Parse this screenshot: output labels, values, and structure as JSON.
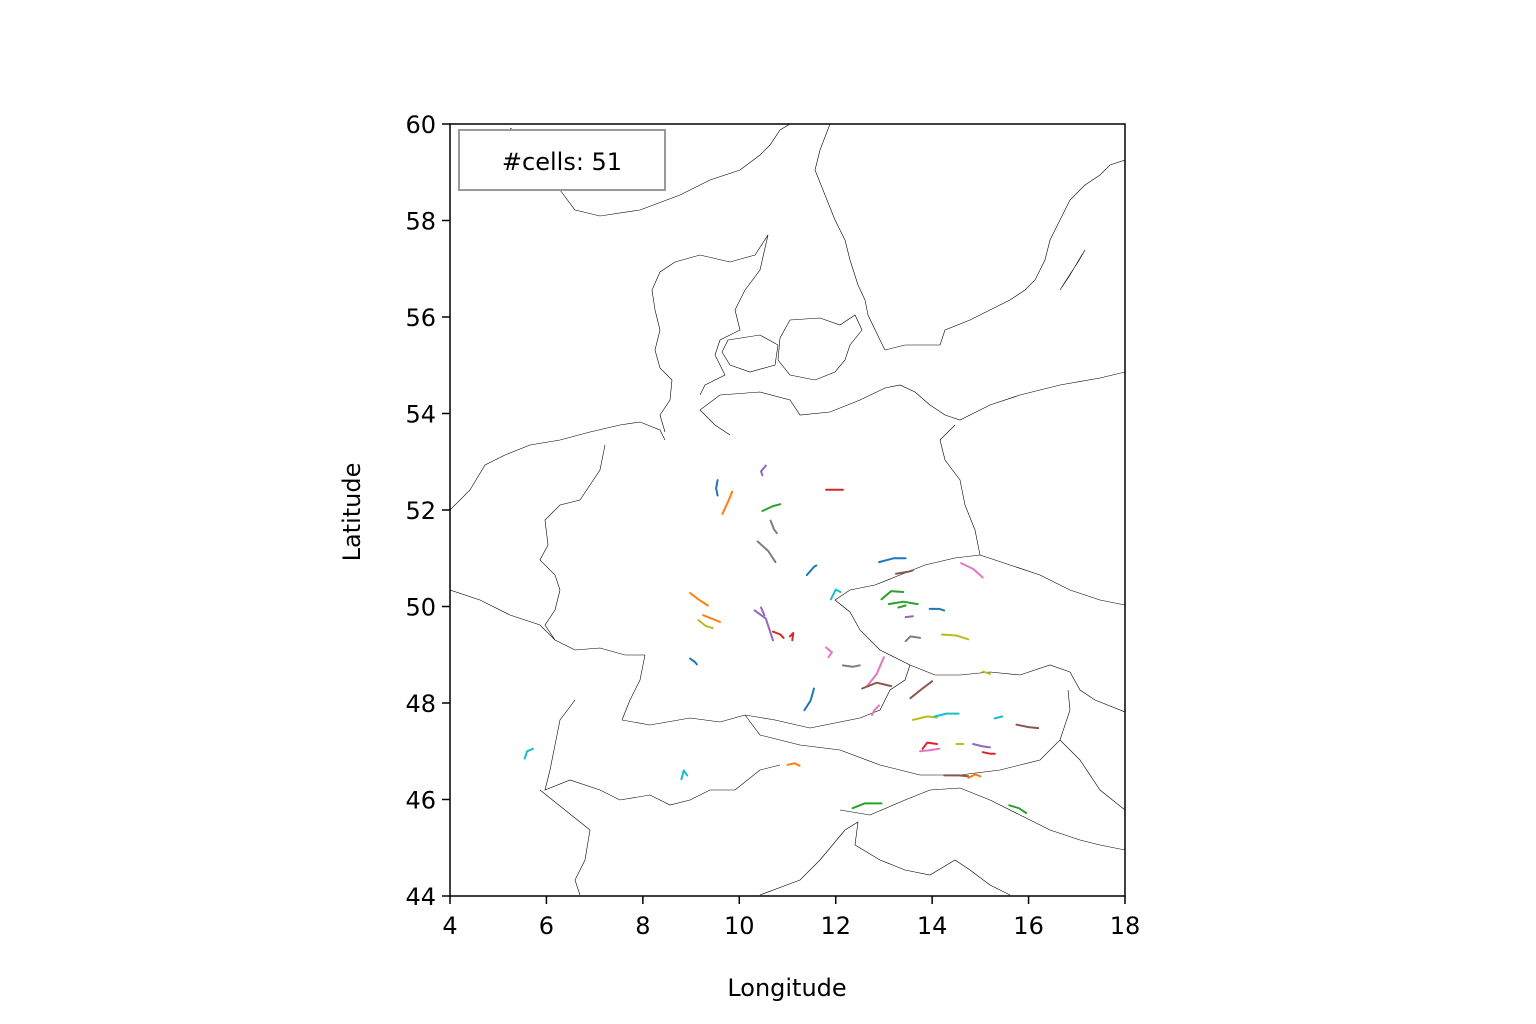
{
  "chart_data": {
    "type": "map-tracks",
    "xlabel": "Longitude",
    "ylabel": "Latitude",
    "xlim": [
      4,
      18
    ],
    "ylim": [
      44,
      60
    ],
    "xticks": [
      4,
      6,
      8,
      10,
      12,
      14,
      16,
      18
    ],
    "yticks": [
      44,
      46,
      48,
      50,
      52,
      54,
      56,
      58,
      60
    ],
    "xtick_labels": [
      "4",
      "6",
      "8",
      "10",
      "12",
      "14",
      "16",
      "18"
    ],
    "ytick_labels": [
      "44",
      "46",
      "48",
      "50",
      "52",
      "54",
      "56",
      "58",
      "60"
    ],
    "annotation": {
      "text": "#cells: 51",
      "placement": "top-left"
    },
    "basemap": "coastlines and country borders (Central Europe)",
    "grid": false,
    "tracks": [
      {
        "color": "#1f77b4",
        "points": [
          [
            9.55,
            52.62
          ],
          [
            9.52,
            52.45
          ],
          [
            9.55,
            52.3
          ]
        ]
      },
      {
        "color": "#ff7f0e",
        "points": [
          [
            9.85,
            52.38
          ],
          [
            9.78,
            52.2
          ],
          [
            9.65,
            51.92
          ]
        ]
      },
      {
        "color": "#9467bd",
        "points": [
          [
            10.55,
            52.92
          ],
          [
            10.45,
            52.8
          ],
          [
            10.48,
            52.72
          ]
        ]
      },
      {
        "color": "#d62728",
        "points": [
          [
            11.8,
            52.42
          ],
          [
            12.15,
            52.42
          ]
        ]
      },
      {
        "color": "#2ca02c",
        "points": [
          [
            10.48,
            51.98
          ],
          [
            10.7,
            52.08
          ],
          [
            10.85,
            52.12
          ]
        ]
      },
      {
        "color": "#7f7f7f",
        "points": [
          [
            10.65,
            51.78
          ],
          [
            10.72,
            51.6
          ],
          [
            10.78,
            51.52
          ]
        ]
      },
      {
        "color": "#7f7f7f",
        "points": [
          [
            10.38,
            51.35
          ],
          [
            10.6,
            51.15
          ],
          [
            10.75,
            50.92
          ]
        ]
      },
      {
        "color": "#1f77b4",
        "points": [
          [
            11.4,
            50.65
          ],
          [
            11.55,
            50.82
          ],
          [
            11.6,
            50.85
          ]
        ]
      },
      {
        "color": "#17becf",
        "points": [
          [
            11.9,
            50.15
          ],
          [
            12.0,
            50.35
          ],
          [
            12.1,
            50.3
          ]
        ]
      },
      {
        "color": "#1f77b4",
        "points": [
          [
            12.9,
            50.92
          ],
          [
            13.2,
            51.0
          ],
          [
            13.45,
            51.0
          ]
        ]
      },
      {
        "color": "#8c564b",
        "points": [
          [
            13.25,
            50.68
          ],
          [
            13.5,
            50.72
          ],
          [
            13.6,
            50.75
          ]
        ]
      },
      {
        "color": "#e377c2",
        "points": [
          [
            14.6,
            50.9
          ],
          [
            14.85,
            50.78
          ],
          [
            15.05,
            50.6
          ]
        ]
      },
      {
        "color": "#2ca02c",
        "points": [
          [
            12.95,
            50.15
          ],
          [
            13.15,
            50.32
          ],
          [
            13.4,
            50.3
          ]
        ]
      },
      {
        "color": "#2ca02c",
        "points": [
          [
            13.1,
            50.05
          ],
          [
            13.4,
            50.1
          ],
          [
            13.7,
            50.05
          ]
        ]
      },
      {
        "color": "#1f77b4",
        "points": [
          [
            13.95,
            49.95
          ],
          [
            14.15,
            49.95
          ],
          [
            14.25,
            49.92
          ]
        ]
      },
      {
        "color": "#9467bd",
        "points": [
          [
            13.45,
            49.78
          ],
          [
            13.6,
            49.8
          ]
        ]
      },
      {
        "color": "#7f7f7f",
        "points": [
          [
            13.45,
            49.28
          ],
          [
            13.55,
            49.38
          ],
          [
            13.75,
            49.35
          ]
        ]
      },
      {
        "color": "#bcbd22",
        "points": [
          [
            14.2,
            49.42
          ],
          [
            14.5,
            49.4
          ],
          [
            14.75,
            49.32
          ]
        ]
      },
      {
        "color": "#ff7f0e",
        "points": [
          [
            8.98,
            50.28
          ],
          [
            9.15,
            50.15
          ],
          [
            9.35,
            50.02
          ]
        ]
      },
      {
        "color": "#ff7f0e",
        "points": [
          [
            9.25,
            49.82
          ],
          [
            9.5,
            49.72
          ],
          [
            9.6,
            49.68
          ]
        ]
      },
      {
        "color": "#bcbd22",
        "points": [
          [
            9.15,
            49.72
          ],
          [
            9.3,
            49.6
          ],
          [
            9.45,
            49.55
          ]
        ]
      },
      {
        "color": "#9467bd",
        "points": [
          [
            10.32,
            49.92
          ],
          [
            10.55,
            49.75
          ],
          [
            10.7,
            49.3
          ]
        ]
      },
      {
        "color": "#d62728",
        "points": [
          [
            10.7,
            49.48
          ],
          [
            10.85,
            49.42
          ],
          [
            10.92,
            49.35
          ]
        ]
      },
      {
        "color": "#d62728",
        "points": [
          [
            11.05,
            49.38
          ],
          [
            11.12,
            49.45
          ],
          [
            11.1,
            49.3
          ]
        ]
      },
      {
        "color": "#1f77b4",
        "points": [
          [
            8.98,
            48.92
          ],
          [
            9.08,
            48.85
          ],
          [
            9.12,
            48.8
          ]
        ]
      },
      {
        "color": "#e377c2",
        "points": [
          [
            11.8,
            49.15
          ],
          [
            11.92,
            49.05
          ],
          [
            11.85,
            48.95
          ]
        ]
      },
      {
        "color": "#7f7f7f",
        "points": [
          [
            12.15,
            48.78
          ],
          [
            12.35,
            48.75
          ],
          [
            12.5,
            48.78
          ]
        ]
      },
      {
        "color": "#e377c2",
        "points": [
          [
            12.65,
            48.35
          ],
          [
            12.85,
            48.6
          ],
          [
            13.0,
            48.95
          ]
        ]
      },
      {
        "color": "#8c564b",
        "points": [
          [
            12.55,
            48.3
          ],
          [
            12.85,
            48.42
          ],
          [
            13.15,
            48.35
          ]
        ]
      },
      {
        "color": "#8c564b",
        "points": [
          [
            13.55,
            48.1
          ],
          [
            13.8,
            48.3
          ],
          [
            14.0,
            48.45
          ]
        ]
      },
      {
        "color": "#1f77b4",
        "points": [
          [
            11.35,
            47.85
          ],
          [
            11.48,
            48.05
          ],
          [
            11.55,
            48.3
          ]
        ]
      },
      {
        "color": "#e377c2",
        "points": [
          [
            12.75,
            47.75
          ],
          [
            12.8,
            47.85
          ],
          [
            12.9,
            47.95
          ]
        ]
      },
      {
        "color": "#bcbd22",
        "points": [
          [
            13.6,
            47.65
          ],
          [
            13.9,
            47.72
          ],
          [
            14.1,
            47.7
          ]
        ]
      },
      {
        "color": "#17becf",
        "points": [
          [
            14.05,
            47.72
          ],
          [
            14.3,
            47.78
          ],
          [
            14.55,
            47.78
          ]
        ]
      },
      {
        "color": "#17becf",
        "points": [
          [
            15.3,
            47.68
          ],
          [
            15.45,
            47.72
          ]
        ]
      },
      {
        "color": "#8c564b",
        "points": [
          [
            15.75,
            47.55
          ],
          [
            16.0,
            47.5
          ],
          [
            16.2,
            47.48
          ]
        ]
      },
      {
        "color": "#d62728",
        "points": [
          [
            13.8,
            47.05
          ],
          [
            13.9,
            47.18
          ],
          [
            14.1,
            47.15
          ]
        ]
      },
      {
        "color": "#e377c2",
        "points": [
          [
            13.75,
            47.0
          ],
          [
            13.95,
            47.02
          ],
          [
            14.15,
            47.05
          ]
        ]
      },
      {
        "color": "#bcbd22",
        "points": [
          [
            14.5,
            47.15
          ],
          [
            14.65,
            47.15
          ]
        ]
      },
      {
        "color": "#9467bd",
        "points": [
          [
            14.85,
            47.15
          ],
          [
            15.05,
            47.1
          ],
          [
            15.2,
            47.08
          ]
        ]
      },
      {
        "color": "#d62728",
        "points": [
          [
            15.05,
            46.98
          ],
          [
            15.2,
            46.95
          ],
          [
            15.3,
            46.95
          ]
        ]
      },
      {
        "color": "#8c564b",
        "points": [
          [
            14.25,
            46.5
          ],
          [
            14.55,
            46.5
          ],
          [
            14.75,
            46.48
          ]
        ]
      },
      {
        "color": "#ff7f0e",
        "points": [
          [
            14.75,
            46.45
          ],
          [
            14.9,
            46.52
          ],
          [
            15.0,
            46.48
          ]
        ]
      },
      {
        "color": "#bcbd22",
        "points": [
          [
            15.05,
            48.65
          ],
          [
            15.15,
            48.62
          ],
          [
            15.2,
            48.6
          ]
        ]
      },
      {
        "color": "#2ca02c",
        "points": [
          [
            12.35,
            45.82
          ],
          [
            12.6,
            45.92
          ],
          [
            12.95,
            45.92
          ]
        ]
      },
      {
        "color": "#2ca02c",
        "points": [
          [
            15.6,
            45.88
          ],
          [
            15.8,
            45.82
          ],
          [
            15.95,
            45.72
          ]
        ]
      },
      {
        "color": "#17becf",
        "points": [
          [
            5.55,
            46.85
          ],
          [
            5.6,
            47.0
          ],
          [
            5.72,
            47.05
          ]
        ]
      },
      {
        "color": "#17becf",
        "points": [
          [
            8.8,
            46.42
          ],
          [
            8.85,
            46.6
          ],
          [
            8.92,
            46.5
          ]
        ]
      },
      {
        "color": "#ff7f0e",
        "points": [
          [
            11.0,
            46.72
          ],
          [
            11.15,
            46.75
          ],
          [
            11.25,
            46.7
          ]
        ]
      },
      {
        "color": "#9467bd",
        "points": [
          [
            10.45,
            49.98
          ],
          [
            10.52,
            49.82
          ]
        ]
      },
      {
        "color": "#2ca02c",
        "points": [
          [
            13.3,
            49.98
          ],
          [
            13.45,
            50.02
          ]
        ]
      }
    ]
  }
}
